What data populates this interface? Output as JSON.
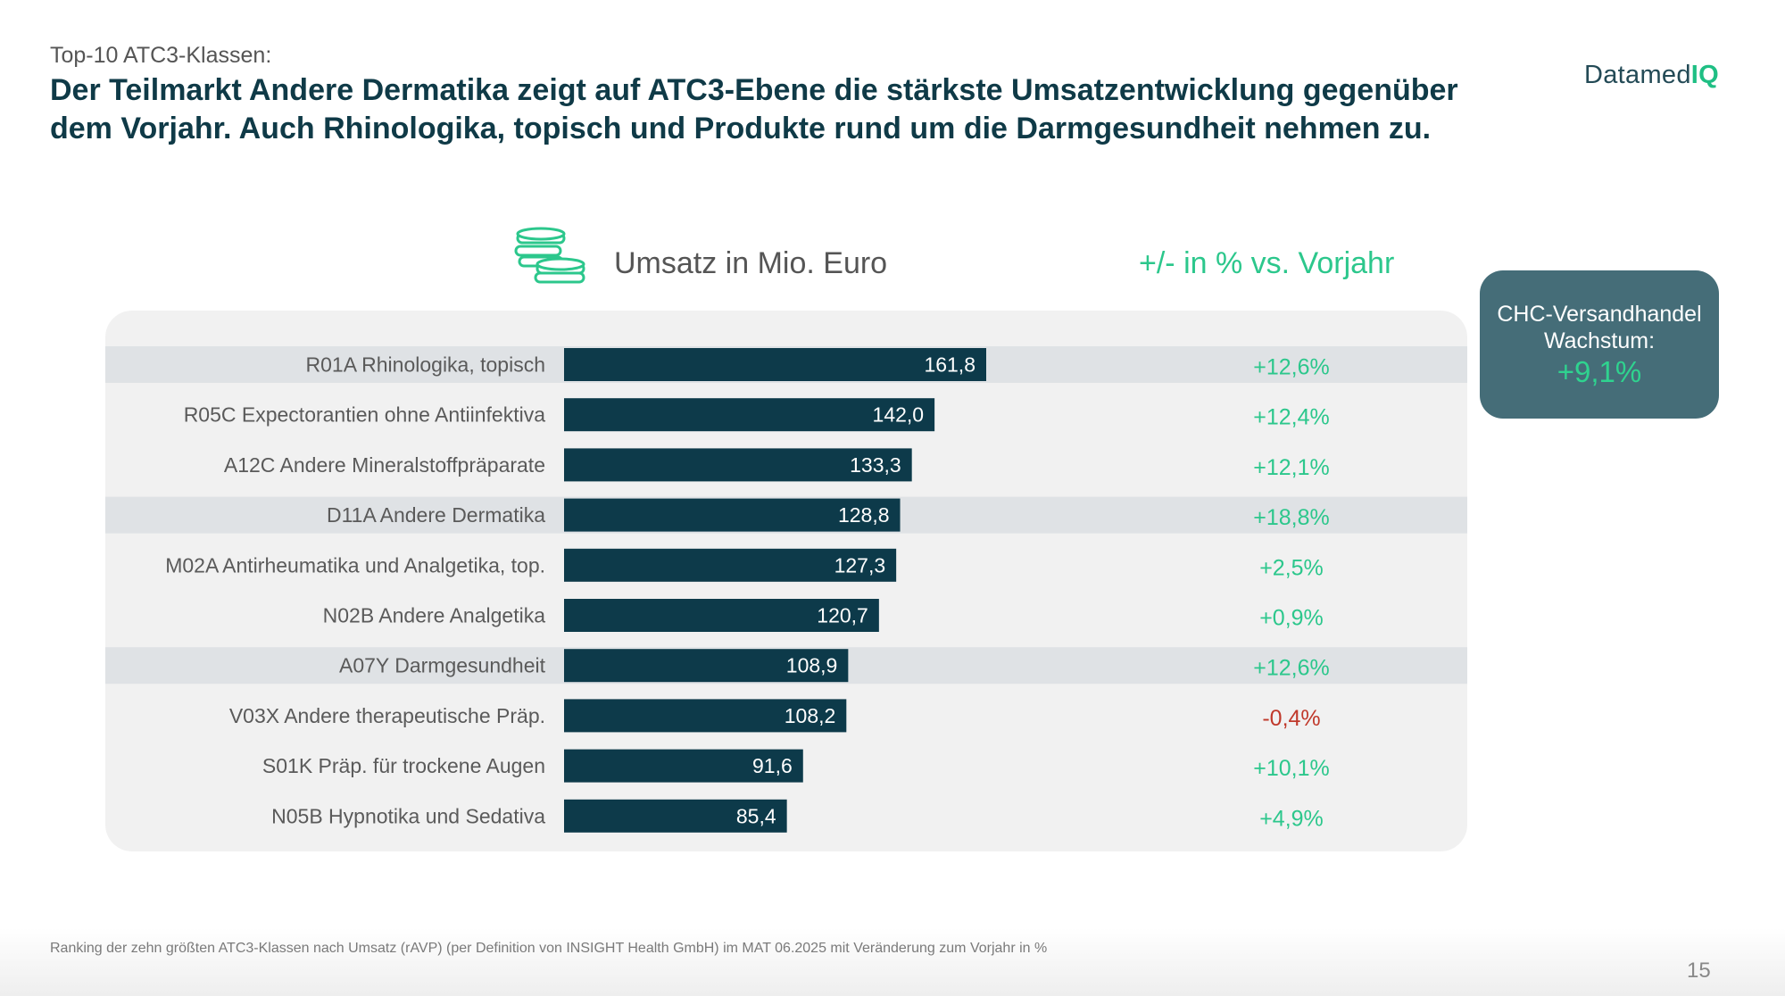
{
  "header": {
    "kicker": "Top-10 ATC3-Klassen:",
    "headline": "Der Teilmarkt Andere Dermatika zeigt auf ATC3-Ebene die stärkste Umsatzentwicklung gegenüber dem Vorjahr. Auch Rhinologika, topisch und Produkte rund um die Darmgesundheit nehmen zu."
  },
  "logo": {
    "text_main": "Datamed",
    "text_accent": "IQ"
  },
  "icons": {
    "coins": "coins-icon"
  },
  "columns": {
    "sales_header": "Umsatz in Mio. Euro",
    "change_header": "+/- in % vs. Vorjahr"
  },
  "highlight_box": {
    "label": "CHC-Versandhandel Wachstum:",
    "value": "+9,1%"
  },
  "colors": {
    "bar": "#0d3a4a",
    "positive": "#2cc78c",
    "negative": "#c0392b",
    "row_highlight": "#dfe2e5",
    "panel": "#f1f1f1"
  },
  "chart_data": {
    "type": "bar",
    "orientation": "horizontal",
    "categories": [
      "R01A  Rhinologika, topisch",
      "R05C  Expectorantien ohne Antiinfektiva",
      "A12C  Andere Mineralstoffpräparate",
      "D11A  Andere Dermatika",
      "M02A  Antirheumatika und Analgetika, top.",
      "N02B  Andere Analgetika",
      "A07Y  Darmgesundheit",
      "V03X  Andere therapeutische Präp.",
      "S01K  Präp. für trockene Augen",
      "N05B  Hypnotika und Sedativa"
    ],
    "values": [
      161.8,
      142.0,
      133.3,
      128.8,
      127.3,
      120.7,
      108.9,
      108.2,
      91.6,
      85.4
    ],
    "value_labels": [
      "161,8",
      "142,0",
      "133,3",
      "128,8",
      "127,3",
      "120,7",
      "108,9",
      "108,2",
      "91,6",
      "85,4"
    ],
    "change_pct": [
      12.6,
      12.4,
      12.1,
      18.8,
      2.5,
      0.9,
      12.6,
      -0.4,
      10.1,
      4.9
    ],
    "change_labels": [
      "+12,6%",
      "+12,4%",
      "+12,1%",
      "+18,8%",
      "+2,5%",
      "+0,9%",
      "+12,6%",
      "-0,4%",
      "+10,1%",
      "+4,9%"
    ],
    "highlighted_rows": [
      0,
      3,
      6
    ],
    "xlabel": "Umsatz in Mio. Euro",
    "ylabel": "",
    "xlim": [
      0,
      161.8
    ]
  },
  "footer": {
    "note": "Ranking der zehn größten ATC3-Klassen nach Umsatz (rAVP)  (per Definition von INSIGHT Health GmbH) im MAT 06.2025 mit Veränderung zum Vorjahr in %",
    "page_number": "15"
  }
}
